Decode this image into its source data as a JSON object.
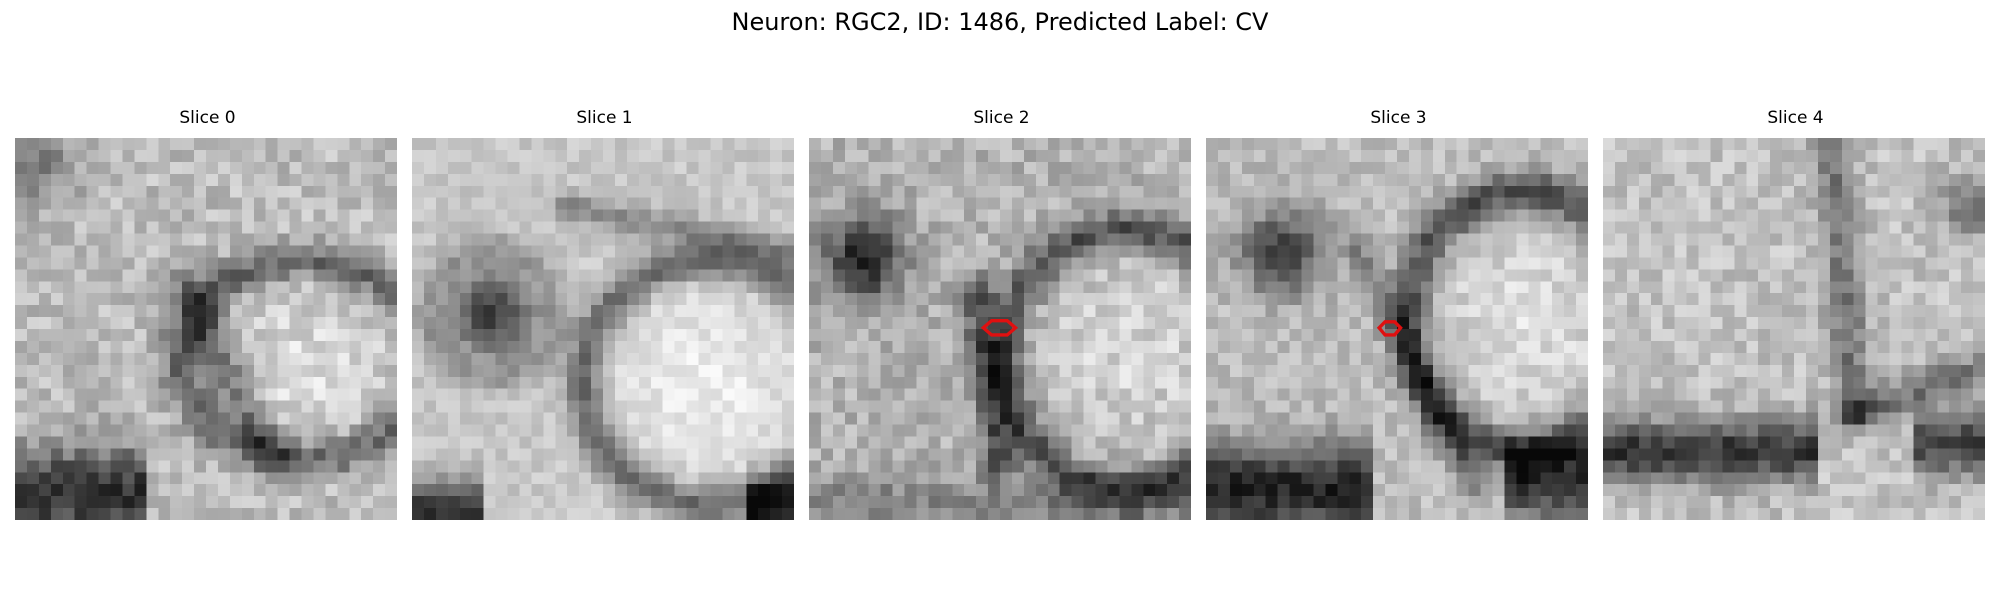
{
  "figure": {
    "title": "Neuron: RGC2, ID: 1486, Predicted Label: CV"
  },
  "slices": [
    {
      "label": "Slice 0",
      "has_marker": false
    },
    {
      "label": "Slice 1",
      "has_marker": false
    },
    {
      "label": "Slice 2",
      "has_marker": true
    },
    {
      "label": "Slice 3",
      "has_marker": true
    },
    {
      "label": "Slice 4",
      "has_marker": false
    }
  ],
  "colors": {
    "marker": "#e01010",
    "background": "#ffffff"
  }
}
